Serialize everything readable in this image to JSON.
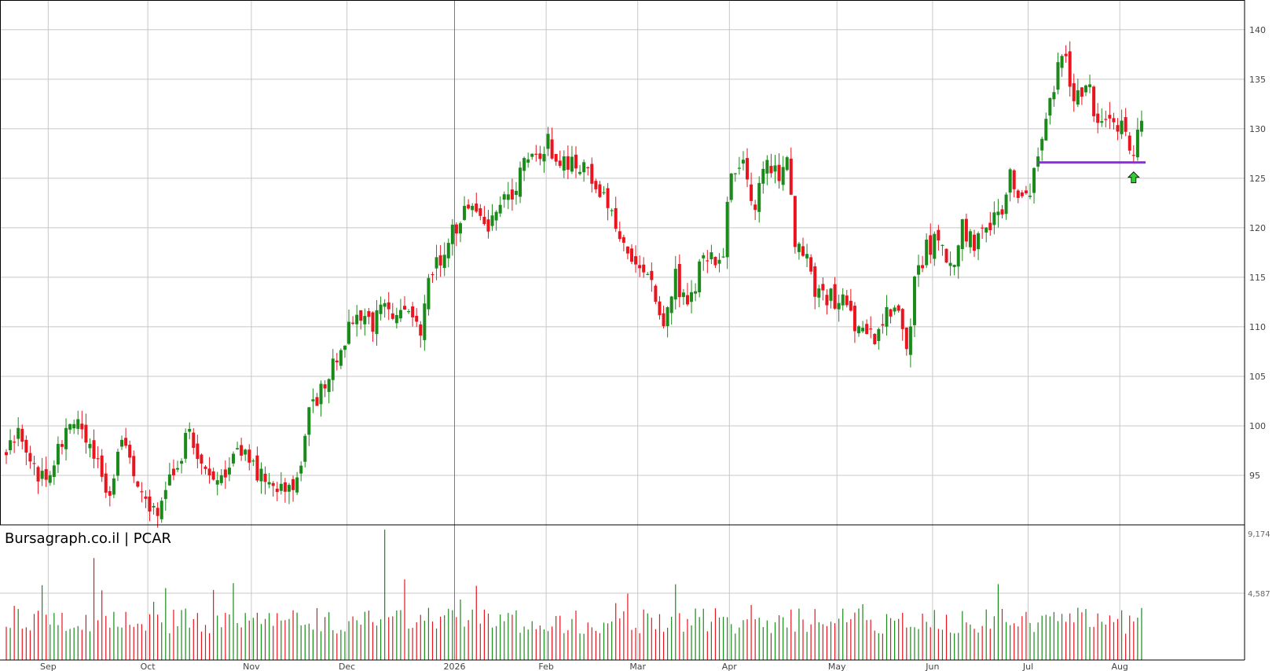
{
  "brand": {
    "label": "Bursagraph.co.il | PCAR"
  },
  "colors": {
    "up": "#1a8a1a",
    "down": "#e8141e",
    "grid": "#c8c8c8",
    "support": "#8a2be2",
    "arrow": "#33cc33"
  },
  "chart_data": {
    "type": "candlestick",
    "ticker": "PCAR",
    "price_axis": {
      "range": [
        90,
        143
      ],
      "ticks": [
        "95",
        "100",
        "105",
        "110",
        "115",
        "120",
        "125",
        "130",
        "135",
        "140"
      ]
    },
    "volume_axis": {
      "range": [
        0,
        9174
      ],
      "ticks": [
        "4,587",
        "9,174"
      ]
    },
    "time_axis": {
      "labels": [
        "Sep",
        "Oct",
        "Nov",
        "Dec",
        "2026",
        "Feb",
        "Mar",
        "Apr",
        "May",
        "Jun",
        "Jul",
        "Aug"
      ],
      "label_index": [
        5,
        30,
        56,
        80,
        107,
        130,
        153,
        176,
        203,
        227,
        251,
        274
      ]
    },
    "support_line": {
      "price": 126.6,
      "from_index": 259,
      "to_index": 286
    },
    "buy_arrow_index": 283,
    "grid": true,
    "anchors": [
      [
        0,
        98
      ],
      [
        4,
        99
      ],
      [
        8,
        94
      ],
      [
        12,
        96
      ],
      [
        15,
        99.5
      ],
      [
        18,
        100.5
      ],
      [
        22,
        97
      ],
      [
        26,
        93
      ],
      [
        29,
        99
      ],
      [
        33,
        94
      ],
      [
        38,
        91
      ],
      [
        42,
        96
      ],
      [
        46,
        99
      ],
      [
        50,
        96
      ],
      [
        54,
        95
      ],
      [
        58,
        98
      ],
      [
        62,
        96
      ],
      [
        66,
        94
      ],
      [
        70,
        93
      ],
      [
        74,
        96
      ],
      [
        76,
        101
      ],
      [
        80,
        104
      ],
      [
        84,
        108
      ],
      [
        87,
        111
      ],
      [
        90,
        110
      ],
      [
        95,
        111.5
      ],
      [
        100,
        111
      ],
      [
        104,
        110
      ],
      [
        106,
        115
      ],
      [
        110,
        118
      ],
      [
        114,
        121
      ],
      [
        117,
        123
      ],
      [
        121,
        120
      ],
      [
        124,
        123
      ],
      [
        127,
        122
      ],
      [
        129,
        127
      ],
      [
        131,
        127
      ],
      [
        134,
        127
      ],
      [
        136,
        129
      ],
      [
        138,
        126
      ],
      [
        142,
        127
      ],
      [
        145,
        126
      ],
      [
        148,
        124
      ],
      [
        151,
        122
      ],
      [
        153,
        120
      ],
      [
        156,
        118
      ],
      [
        160,
        115
      ],
      [
        163,
        113
      ],
      [
        165,
        111
      ],
      [
        168,
        115
      ],
      [
        170,
        113
      ],
      [
        172,
        113
      ],
      [
        174,
        116
      ],
      [
        176,
        117
      ],
      [
        178,
        117
      ],
      [
        180,
        118
      ],
      [
        182,
        126
      ],
      [
        185,
        127
      ],
      [
        188,
        122
      ],
      [
        191,
        127
      ],
      [
        194,
        125
      ],
      [
        196,
        127
      ],
      [
        198,
        119
      ],
      [
        201,
        117
      ],
      [
        203,
        114
      ],
      [
        207,
        113
      ],
      [
        211,
        112
      ],
      [
        215,
        109
      ],
      [
        218,
        109
      ],
      [
        221,
        111
      ],
      [
        224,
        112
      ],
      [
        226,
        108
      ],
      [
        228,
        114
      ],
      [
        231,
        118
      ],
      [
        234,
        119
      ],
      [
        237,
        116
      ],
      [
        240,
        120
      ],
      [
        243,
        118
      ],
      [
        246,
        120
      ],
      [
        249,
        121
      ],
      [
        252,
        125
      ],
      [
        255,
        123
      ],
      [
        258,
        125
      ],
      [
        260,
        130
      ],
      [
        263,
        134
      ],
      [
        265,
        138
      ],
      [
        268,
        133
      ],
      [
        271,
        135
      ],
      [
        274,
        131
      ],
      [
        277,
        131
      ],
      [
        280,
        130
      ],
      [
        282,
        128
      ],
      [
        283,
        127.5
      ],
      [
        285,
        130.8
      ]
    ],
    "range_days": 286
  }
}
